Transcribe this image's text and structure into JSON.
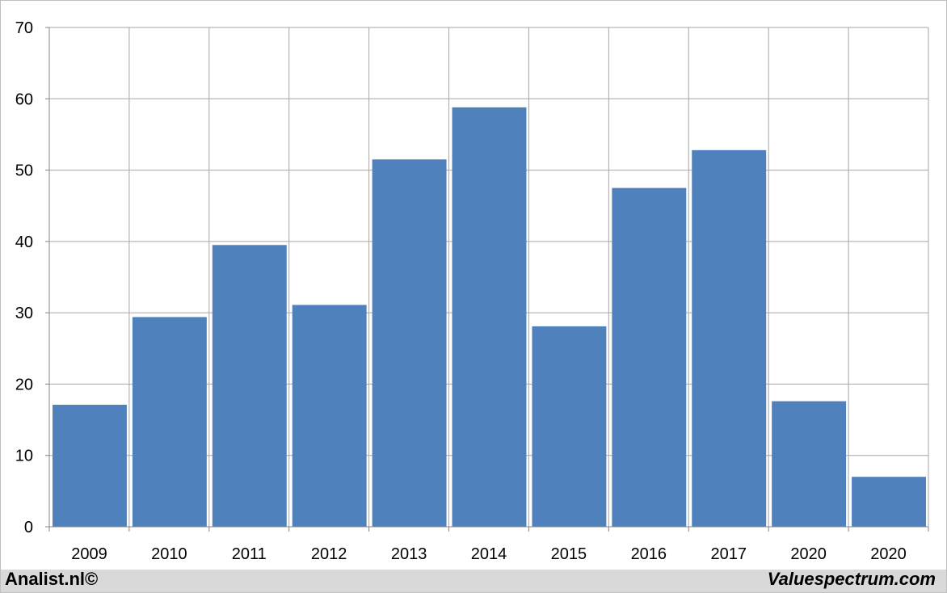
{
  "chart_data": {
    "type": "bar",
    "categories": [
      "2009",
      "2010",
      "2011",
      "2012",
      "2013",
      "2014",
      "2015",
      "2016",
      "2017",
      "2020",
      "2020"
    ],
    "values": [
      17.1,
      29.4,
      39.5,
      31.1,
      51.5,
      58.8,
      28.1,
      47.5,
      52.8,
      17.6,
      7.0
    ],
    "title": "",
    "xlabel": "",
    "ylabel": "",
    "ylim": [
      0,
      70
    ],
    "yticks": [
      "0",
      "10",
      "20",
      "30",
      "40",
      "50",
      "60",
      "70"
    ],
    "grid": true,
    "legend": "none",
    "bar_color": "#4f81bd",
    "grid_color": "#a6a6a6"
  },
  "footer": {
    "left": "Analist.nl©",
    "right": "Valuespectrum.com"
  }
}
